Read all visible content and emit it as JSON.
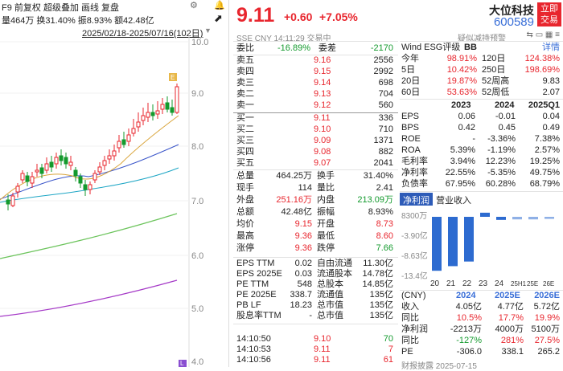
{
  "chart_panel": {
    "line1": "F9 前复权 超级叠加 画线 复盘",
    "stats": {
      "vol": "量464万",
      "turnover": "换31.40%",
      "amp": "振8.93%",
      "amount": "额42.48亿"
    },
    "range": "2025/02/18-2025/07/16(102日)",
    "price_ticks": [
      "10.0",
      "9.0",
      "8.0",
      "7.0",
      "6.0",
      "5.0",
      "4.0"
    ],
    "tag_E": "E",
    "tag_L": "L"
  },
  "quote": {
    "price": "9.11",
    "change": "+0.60",
    "pct": "+7.05%",
    "name": "大位科技",
    "code": "600589",
    "btn": "立即交易",
    "sub": "SSE CNY 14:11:29 交易中",
    "sub_right": "疑似减持预警",
    "wb_label": "委比",
    "wb": "-16.89%",
    "wc_label": "委差",
    "wc": "-2170"
  },
  "asks": [
    {
      "l": "卖五",
      "p": "9.16",
      "v": "2556"
    },
    {
      "l": "卖四",
      "p": "9.15",
      "v": "2992"
    },
    {
      "l": "卖三",
      "p": "9.14",
      "v": "698"
    },
    {
      "l": "卖二",
      "p": "9.13",
      "v": "704"
    },
    {
      "l": "卖一",
      "p": "9.12",
      "v": "560"
    }
  ],
  "bids": [
    {
      "l": "买一",
      "p": "9.11",
      "v": "336"
    },
    {
      "l": "买二",
      "p": "9.10",
      "v": "710"
    },
    {
      "l": "买三",
      "p": "9.09",
      "v": "1371"
    },
    {
      "l": "买四",
      "p": "9.08",
      "v": "882"
    },
    {
      "l": "买五",
      "p": "9.07",
      "v": "2041"
    }
  ],
  "stats": [
    [
      "总量",
      "464.25万",
      "换手",
      "31.40%"
    ],
    [
      "现手",
      "114",
      "量比",
      "2.41"
    ],
    [
      "外盘",
      "251.16万",
      "内盘",
      "213.09万"
    ],
    [
      "总额",
      "42.48亿",
      "振幅",
      "8.93%"
    ],
    [
      "均价",
      "9.15",
      "开盘",
      "8.73"
    ],
    [
      "最高",
      "9.36",
      "最低",
      "8.60"
    ],
    [
      "涨停",
      "9.36",
      "跌停",
      "7.66"
    ]
  ],
  "fund": [
    [
      "EPS TTM",
      "0.02",
      "自由流通",
      "11.30亿"
    ],
    [
      "EPS 2025E",
      "0.03",
      "流通股本",
      "14.78亿"
    ],
    [
      "PE TTM",
      "548",
      "总股本",
      "14.85亿"
    ],
    [
      "PE 2025E",
      "338.7",
      "流通值",
      "135亿"
    ],
    [
      "PB LF",
      "18.23",
      "总市值",
      "135亿"
    ],
    [
      "股息率TTM",
      "-",
      "总市值",
      "135亿"
    ]
  ],
  "ticks": [
    [
      "14:10:50",
      "9.10",
      "70"
    ],
    [
      "14:10:53",
      "9.11",
      "7"
    ],
    [
      "14:10:56",
      "9.11",
      "61"
    ]
  ],
  "esg": {
    "label": "Wind ESG评级",
    "grade": "BB",
    "detail": "详情"
  },
  "perf": [
    [
      "今年",
      "98.91%",
      "120日",
      "124.38%"
    ],
    [
      "5日",
      "10.42%",
      "250日",
      "198.69%"
    ],
    [
      "20日",
      "19.87%",
      "52周高",
      "9.83"
    ],
    [
      "60日",
      "53.63%",
      "52周低",
      "2.07"
    ]
  ],
  "fin_head": [
    "2023",
    "2024",
    "2025Q1"
  ],
  "fin": [
    [
      "EPS",
      "0.06",
      "-0.01",
      "0.04"
    ],
    [
      "BPS",
      "0.42",
      "0.45",
      "0.49"
    ],
    [
      "ROE",
      "-",
      "-3.36%",
      "7.38%"
    ],
    [
      "ROA",
      "5.39%",
      "-1.19%",
      "2.57%"
    ],
    [
      "毛利率",
      "3.94%",
      "12.23%",
      "19.25%"
    ],
    [
      "净利率",
      "22.55%",
      "-5.35%",
      "49.75%"
    ],
    [
      "负债率",
      "67.95%",
      "60.28%",
      "68.79%"
    ]
  ],
  "tabs": [
    "净利润",
    "营业收入"
  ],
  "chart_data": {
    "type": "bar",
    "categories": [
      "20",
      "21",
      "22",
      "23",
      "24",
      "25H1",
      "25E",
      "26E"
    ],
    "values": [
      -10.5,
      -9.6,
      -8.7,
      0.8,
      -0.6,
      -0.5,
      -0.5,
      -0.4
    ],
    "ylabels": [
      "8300万",
      "-3.90亿",
      "-8.63亿",
      "-13.4亿"
    ]
  },
  "fc_head": [
    "(CNY)",
    "2024",
    "2025E",
    "2026E"
  ],
  "fc": [
    [
      "收入",
      "4.05亿",
      "4.77亿",
      "5.72亿"
    ],
    [
      "同比",
      "10.5%",
      "17.7%",
      "19.9%"
    ],
    [
      "净利润",
      "-2213万",
      "4000万",
      "5100万"
    ],
    [
      "同比",
      "-127%",
      "281%",
      "27.5%"
    ],
    [
      "PE",
      "-306.0",
      "338.1",
      "265.2"
    ]
  ],
  "footer": "财报披露  2025-07-15"
}
